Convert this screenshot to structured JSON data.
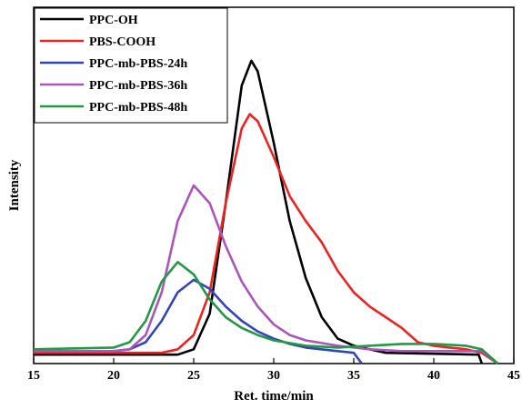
{
  "chart_data": {
    "type": "line",
    "xlabel": "Ret. time/min",
    "ylabel": "Intensity",
    "xlim": [
      15,
      45
    ],
    "xticks": [
      15,
      20,
      25,
      30,
      35,
      40,
      45
    ],
    "ylim": [
      0,
      100
    ],
    "legend": "upper left",
    "series": [
      {
        "name": "PPC-OH",
        "color": "#000000",
        "x": [
          15,
          24,
          25,
          26,
          27,
          28,
          28.6,
          29,
          30,
          31,
          32,
          33,
          34,
          35,
          36,
          37,
          42.8,
          43
        ],
        "values": [
          2.5,
          2.5,
          4,
          14,
          45,
          78,
          85,
          82,
          62,
          40,
          24,
          13,
          7,
          5,
          4,
          3,
          2.5,
          0
        ]
      },
      {
        "name": "PBS-COOH",
        "color": "#ee2222",
        "x": [
          15,
          23,
          24,
          25,
          26,
          27,
          28,
          28.5,
          29,
          30,
          31,
          32,
          33,
          34,
          35,
          36,
          37,
          38,
          39,
          40,
          41,
          42,
          43,
          44
        ],
        "values": [
          3,
          3,
          4,
          8,
          20,
          45,
          66,
          70,
          68,
          58,
          47,
          40,
          34,
          26,
          20,
          16,
          13,
          10,
          6,
          5,
          4.5,
          4,
          3,
          0
        ]
      },
      {
        "name": "PPC-mb-PBS-24h",
        "color": "#3344bb",
        "x": [
          15,
          20,
          21,
          22,
          23,
          24,
          25,
          26,
          27,
          28,
          29,
          30,
          31,
          32,
          34,
          35,
          35.5
        ],
        "values": [
          3.5,
          3.5,
          4,
          6,
          12,
          20,
          23.5,
          21,
          16,
          12,
          9,
          7,
          5.5,
          4.5,
          3.5,
          3,
          0
        ]
      },
      {
        "name": "PPC-mb-PBS-36h",
        "color": "#aa55bb",
        "x": [
          15,
          20,
          21,
          22,
          23,
          24,
          25,
          26,
          27,
          28,
          29,
          30,
          31,
          32,
          34,
          36,
          38,
          43,
          44
        ],
        "values": [
          3.5,
          3.5,
          4,
          8,
          20,
          40,
          50,
          45,
          33,
          23,
          16,
          11,
          8,
          6.5,
          5,
          4,
          3.5,
          3.5,
          0
        ]
      },
      {
        "name": "PPC-mb-PBS-48h",
        "color": "#229944",
        "x": [
          15,
          20,
          21,
          22,
          23,
          24,
          25,
          26,
          27,
          28,
          29,
          30,
          32,
          34,
          36,
          38,
          40,
          42,
          43,
          44
        ],
        "values": [
          4,
          4.5,
          6,
          12,
          23,
          28.5,
          25,
          18,
          13,
          10,
          8,
          6.5,
          5,
          4.5,
          5,
          5.5,
          5.5,
          5,
          4,
          0
        ]
      }
    ]
  }
}
